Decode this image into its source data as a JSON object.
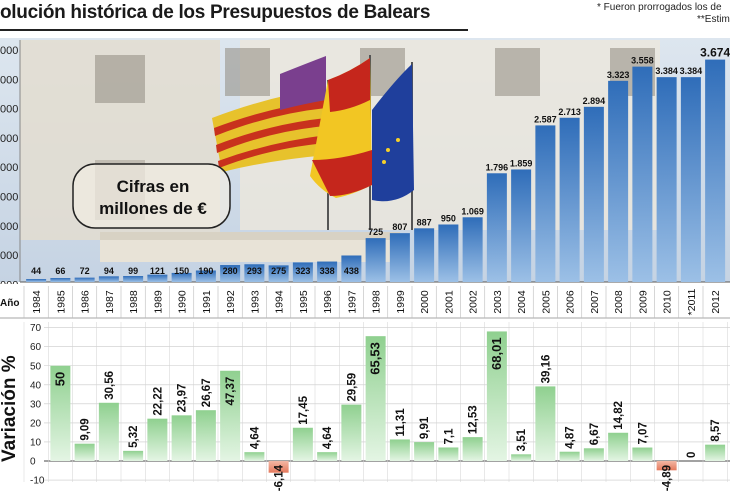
{
  "header": {
    "title": "olución histórica de los Presupuestos de Balears",
    "note1": "* Fueron prorrogados los de",
    "note2": "**Estim"
  },
  "colors": {
    "bar_blue": "#3b78c4",
    "bar_green": "#a9dca9",
    "bar_red": "#f0a08a",
    "sky": "#cfdceb",
    "building": "#e6e0d2"
  },
  "chart_data": [
    {
      "type": "bar",
      "title": "Cifras en millones de €",
      "xlabel": "Año",
      "ylabel": "",
      "ylim": [
        0,
        4000
      ],
      "ytick_labels": [
        "000",
        "000",
        "000",
        "000",
        "000",
        "000",
        "000",
        "000",
        "000"
      ],
      "categories": [
        "1984",
        "1985",
        "1986",
        "1987",
        "1988",
        "1989",
        "1990",
        "1991",
        "1992",
        "1993",
        "1994",
        "1995",
        "1996",
        "1997",
        "1998",
        "1999",
        "2000",
        "2001",
        "2002",
        "2003",
        "2004",
        "2005",
        "2006",
        "2007",
        "2008",
        "2009",
        "2010",
        "*2011",
        "2012"
      ],
      "value_labels": [
        "44",
        "66",
        "72",
        "94",
        "99",
        "121",
        "150",
        "190",
        "280",
        "293",
        "275",
        "323",
        "338",
        "438",
        "725",
        "807",
        "887",
        "950",
        "1.069",
        "1.796",
        "1.859",
        "2.587",
        "2.713",
        "2.894",
        "3.323",
        "3.558",
        "3.384",
        "3.384",
        "3.674"
      ],
      "values": [
        44,
        66,
        72,
        94,
        99,
        121,
        150,
        190,
        280,
        293,
        275,
        323,
        338,
        438,
        725,
        807,
        887,
        950,
        1069,
        1796,
        1859,
        2587,
        2713,
        2894,
        3323,
        3558,
        3384,
        3384,
        3674
      ]
    },
    {
      "type": "bar",
      "title": "",
      "xlabel": "",
      "ylabel": "Variación %",
      "ylim": [
        -10,
        70
      ],
      "ytick_labels": [
        "70",
        "60",
        "50",
        "40",
        "30",
        "20",
        "10",
        "0",
        "-10"
      ],
      "categories": [
        "1985",
        "1986",
        "1987",
        "1988",
        "1989",
        "1990",
        "1991",
        "1992",
        "1993",
        "1994",
        "1995",
        "1996",
        "1997",
        "1998",
        "1999",
        "2000",
        "2001",
        "2002",
        "2003",
        "2004",
        "2005",
        "2006",
        "2007",
        "2008",
        "2009",
        "2010",
        "*2011",
        "2012"
      ],
      "value_labels": [
        "50",
        "9,09",
        "30,56",
        "5,32",
        "22,22",
        "23,97",
        "26,67",
        "47,37",
        "4,64",
        "-6,14",
        "17,45",
        "4,64",
        "29,59",
        "65,53",
        "11,31",
        "9,91",
        "7,1",
        "12,53",
        "68,01",
        "3,51",
        "39,16",
        "4,87",
        "6,67",
        "14,82",
        "7,07",
        "-4,89",
        "0",
        "8,57"
      ],
      "values": [
        50,
        9.09,
        30.56,
        5.32,
        22.22,
        23.97,
        26.67,
        47.37,
        4.64,
        -6.14,
        17.45,
        4.64,
        29.59,
        65.53,
        11.31,
        9.91,
        7.1,
        12.53,
        68.01,
        3.51,
        39.16,
        4.87,
        6.67,
        14.82,
        7.07,
        -4.89,
        0,
        8.57
      ]
    }
  ]
}
